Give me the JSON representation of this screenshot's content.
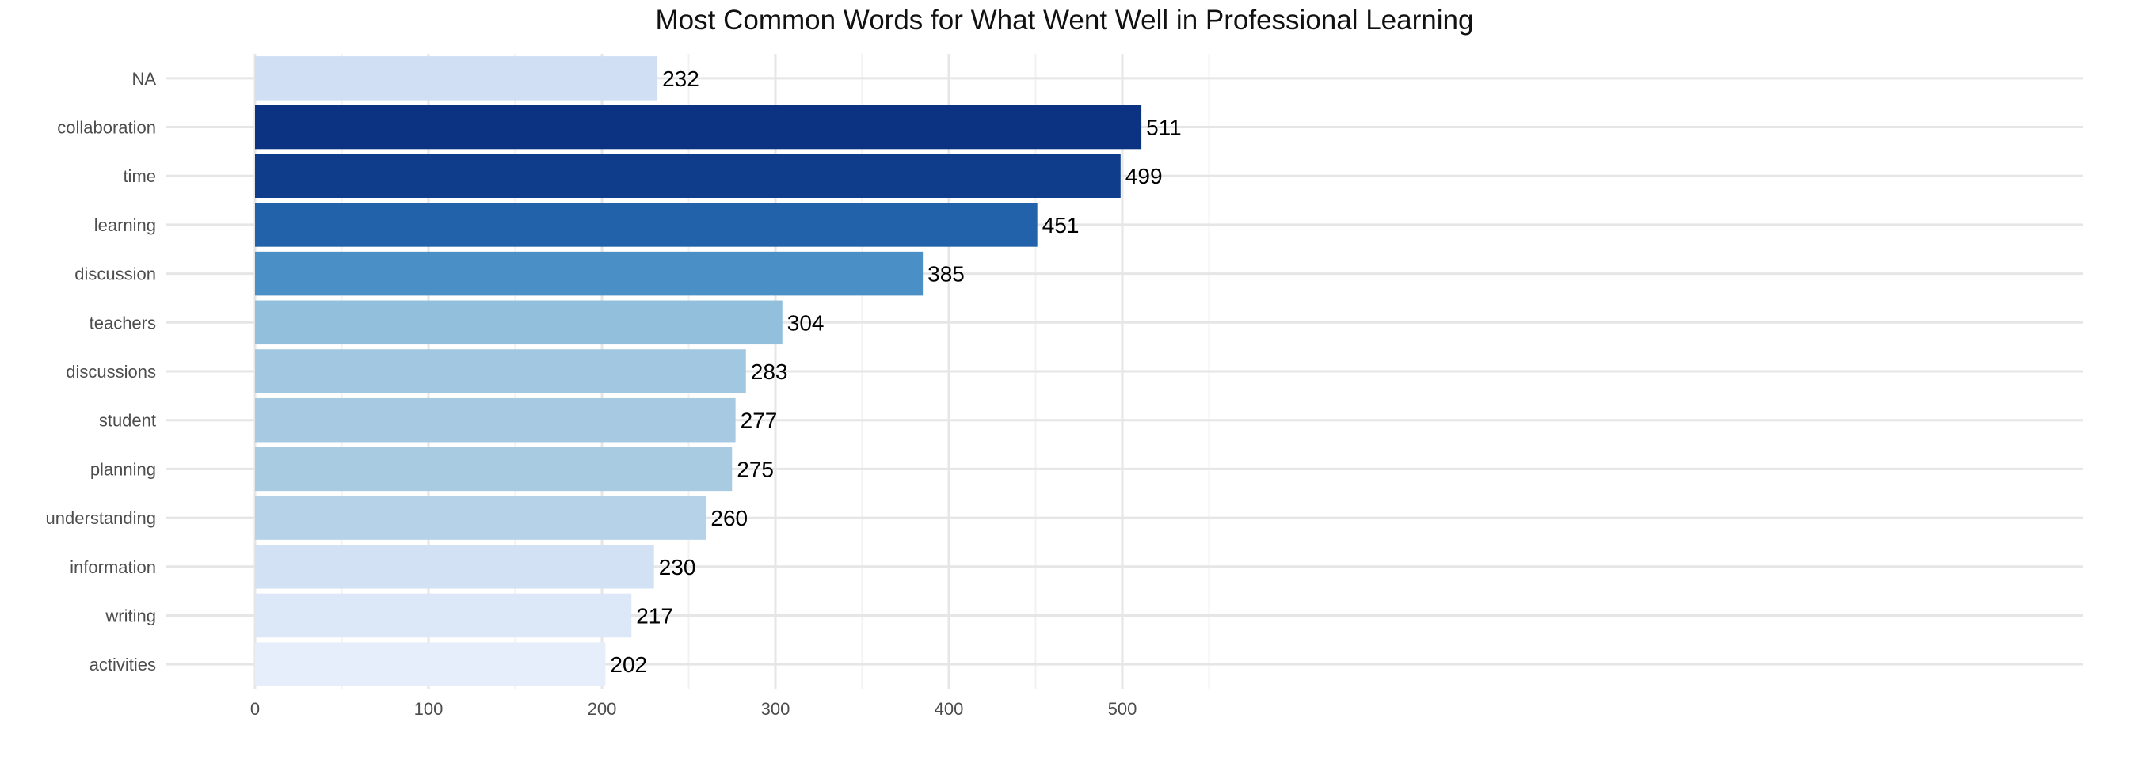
{
  "chart_data": {
    "type": "bar",
    "orientation": "horizontal",
    "title": "Most Common Words for What Went Well in Professional Learning",
    "xlabel": "",
    "ylabel": "",
    "categories": [
      "NA",
      "collaboration",
      "time",
      "learning",
      "discussion",
      "teachers",
      "discussions",
      "student",
      "planning",
      "understanding",
      "information",
      "writing",
      "activities"
    ],
    "values": [
      232,
      511,
      499,
      451,
      385,
      304,
      283,
      277,
      275,
      260,
      230,
      217,
      202
    ],
    "bar_colors": [
      "#d0dff3",
      "#0b3382",
      "#103d8b",
      "#2262aa",
      "#4a8fc5",
      "#91bfdc",
      "#a2c7e1",
      "#a7cae2",
      "#a8cbe2",
      "#b6d2e9",
      "#d3e1f4",
      "#dce7f7",
      "#e5eefa"
    ],
    "xlim": [
      -25,
      536
    ],
    "xticks": [
      0,
      100,
      200,
      300,
      400,
      500
    ],
    "grid": true,
    "legend": "none"
  }
}
